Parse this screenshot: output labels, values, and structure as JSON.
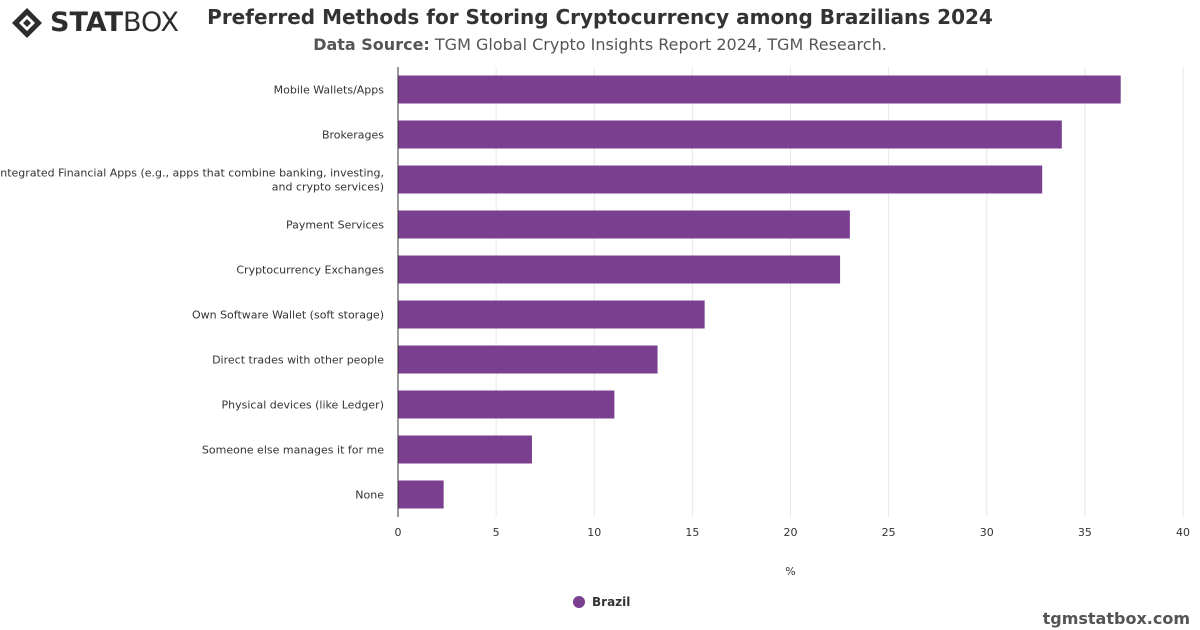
{
  "brand": {
    "logo_bold": "STAT",
    "logo_thin": "BOX",
    "credit": "tgmstatbox.com"
  },
  "header": {
    "title": "Preferred Methods for Storing Cryptocurrency among Brazilians 2024",
    "source_label": "Data Source:",
    "source_text": "TGM Global Crypto Insights Report 2024, TGM Research."
  },
  "colors": {
    "bar": "#7b3f8f",
    "grid": "#e6e6e6",
    "axis": "#333333",
    "text": "#333333"
  },
  "chart_data": {
    "type": "bar",
    "orientation": "horizontal",
    "categories": [
      "Mobile Wallets/Apps",
      "Brokerages",
      "Integrated Financial Apps (e.g., apps that combine banking, investing, and crypto services)",
      "Payment Services",
      "Cryptocurrency Exchanges",
      "Own Software Wallet (soft storage)",
      "Direct trades with other people",
      "Physical devices (like Ledger)",
      "Someone else manages it for me",
      "None"
    ],
    "category_lines": [
      [
        "Mobile Wallets/Apps"
      ],
      [
        "Brokerages"
      ],
      [
        "Integrated Financial Apps (e.g., apps that combine banking, investing,",
        "and crypto services)"
      ],
      [
        "Payment Services"
      ],
      [
        "Cryptocurrency Exchanges"
      ],
      [
        "Own Software Wallet (soft storage)"
      ],
      [
        "Direct trades with other people"
      ],
      [
        "Physical devices (like Ledger)"
      ],
      [
        "Someone else manages it for me"
      ],
      [
        "None"
      ]
    ],
    "series": [
      {
        "name": "Brazil",
        "values": [
          36.8,
          33.8,
          32.8,
          23.0,
          22.5,
          15.6,
          13.2,
          11.0,
          6.8,
          2.3
        ]
      }
    ],
    "xlabel": "%",
    "xlim": [
      0,
      40
    ],
    "xticks": [
      "0",
      "5",
      "10",
      "15",
      "20",
      "25",
      "30",
      "35",
      "40"
    ],
    "grid": "vertical",
    "legend": "bottom-center"
  }
}
